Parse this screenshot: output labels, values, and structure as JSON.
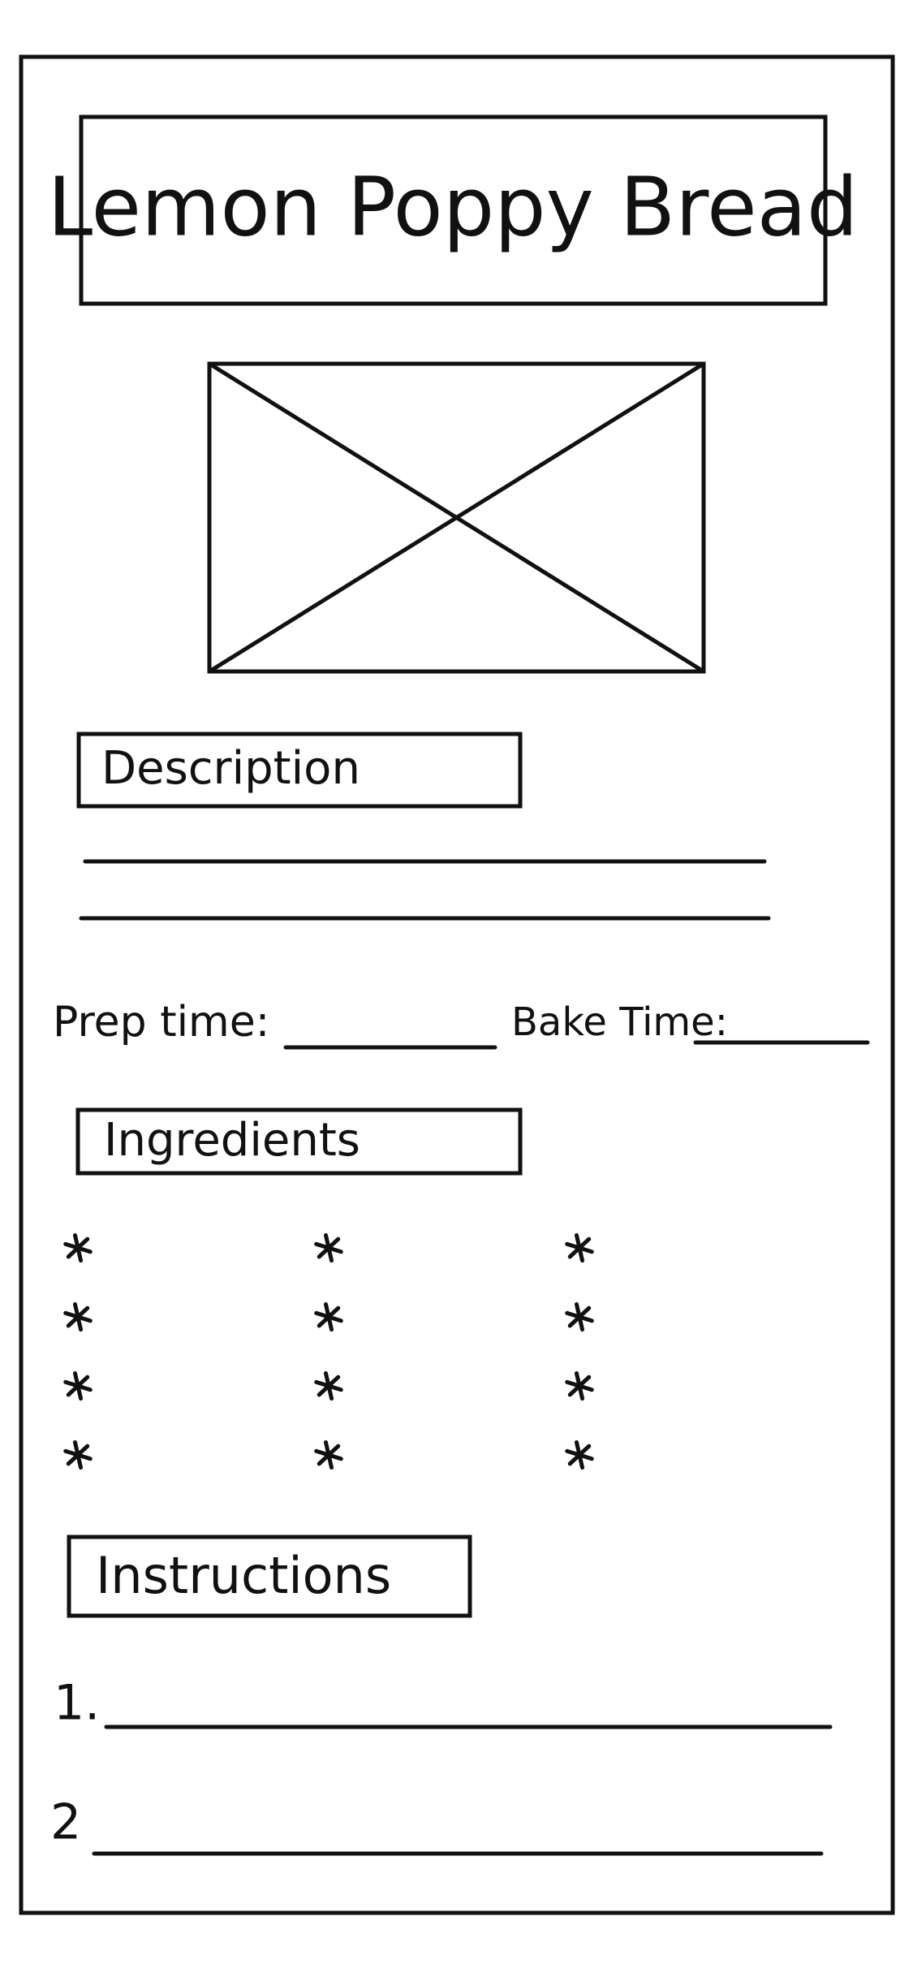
{
  "header": {
    "title": "Lemon Poppy Bread"
  },
  "description": {
    "heading": "Description"
  },
  "times": {
    "prep": "Prep time:",
    "bake": "Bake Time:"
  },
  "ingredients": {
    "heading": "Ingredients"
  },
  "instructions": {
    "heading": "Instructions",
    "steps": [
      "1.",
      "2"
    ]
  }
}
